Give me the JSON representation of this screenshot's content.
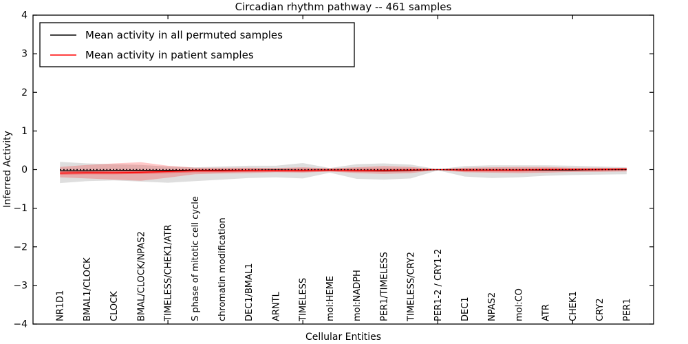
{
  "figure": {
    "title": "Circadian rhythm pathway -- 461 samples",
    "xlabel": "Cellular Entities",
    "ylabel": "Inferred Activity"
  },
  "legend": {
    "position": "upper left",
    "items": [
      {
        "label": "Mean activity in all permuted samples",
        "color": "#000000"
      },
      {
        "label": "Mean activity in patient samples",
        "color": "#ff0000"
      }
    ]
  },
  "chart_data": {
    "type": "line",
    "title": "Circadian rhythm pathway -- 461 samples",
    "xlabel": "Cellular Entities",
    "ylabel": "Inferred Activity",
    "ylim": [
      -4,
      4
    ],
    "xlim": [
      0,
      23
    ],
    "grid": false,
    "legend_position": "upper left",
    "ytick_labels": [
      "4",
      "3",
      "2",
      "1",
      "0",
      "−1",
      "−2",
      "−3",
      "−4"
    ],
    "ytick_values": [
      4,
      3,
      2,
      1,
      0,
      -1,
      -2,
      -3,
      -4
    ],
    "x_major_ticks": [
      5,
      10,
      15,
      20
    ],
    "categories": [
      "NR1D1",
      "BMAL1/CLOCK",
      "CLOCK",
      "BMAL/CLOCK/NPAS2",
      "TIMELESS/CHEK1/ATR",
      "S phase of mitotic cell cycle",
      "chromatin modification",
      "DEC1/BMAL1",
      "ARNTL",
      "TIMELESS",
      "mol:HEME",
      "mol:NADPH",
      "PER1/TIMELESS",
      "TIMELESS/CRY2",
      "PER1-2 / CRY1-2",
      "DEC1",
      "NPAS2",
      "mol:CO",
      "ATR",
      "CHEK1",
      "CRY2",
      "PER1"
    ],
    "bands": [
      {
        "name": "permuted-samples-range",
        "color": "#999999",
        "opacity": 0.32,
        "upper": [
          0.2,
          0.16,
          0.14,
          0.12,
          0.08,
          0.06,
          0.08,
          0.1,
          0.1,
          0.17,
          0.04,
          0.14,
          0.16,
          0.13,
          0.01,
          0.09,
          0.11,
          0.11,
          0.11,
          0.1,
          0.08,
          0.06
        ],
        "lower": [
          -0.35,
          -0.3,
          -0.28,
          -0.31,
          -0.34,
          -0.3,
          -0.26,
          -0.22,
          -0.2,
          -0.23,
          -0.08,
          -0.24,
          -0.26,
          -0.23,
          -0.02,
          -0.18,
          -0.22,
          -0.2,
          -0.16,
          -0.14,
          -0.13,
          -0.12
        ]
      },
      {
        "name": "patient-samples-range",
        "color": "#ff0000",
        "opacity": 0.22,
        "upper": [
          0.07,
          0.12,
          0.16,
          0.19,
          0.1,
          0.05,
          0.05,
          0.05,
          0.04,
          0.06,
          0.03,
          0.06,
          0.09,
          0.07,
          0.01,
          0.05,
          0.06,
          0.07,
          0.07,
          0.05,
          0.05,
          0.04
        ],
        "lower": [
          -0.2,
          -0.23,
          -0.26,
          -0.29,
          -0.21,
          -0.12,
          -0.1,
          -0.09,
          -0.07,
          -0.08,
          -0.05,
          -0.09,
          -0.11,
          -0.09,
          -0.01,
          -0.07,
          -0.08,
          -0.09,
          -0.08,
          -0.06,
          -0.06,
          -0.05
        ]
      },
      {
        "name": "patient-samples-core",
        "color": "#ff0000",
        "opacity": 0.38,
        "upper": [
          -0.05,
          -0.04,
          -0.04,
          -0.03,
          -0.01,
          0.01,
          0.01,
          0.02,
          0.02,
          0.02,
          0.02,
          0.02,
          0.02,
          0.02,
          0.01,
          0.02,
          0.02,
          0.02,
          0.03,
          0.03,
          0.03,
          0.04
        ],
        "lower": [
          -0.13,
          -0.12,
          -0.12,
          -0.11,
          -0.09,
          -0.07,
          -0.07,
          -0.06,
          -0.06,
          -0.06,
          -0.05,
          -0.06,
          -0.06,
          -0.05,
          -0.01,
          -0.05,
          -0.05,
          -0.05,
          -0.04,
          -0.04,
          -0.03,
          -0.02
        ]
      }
    ],
    "series": [
      {
        "name": "Mean activity in all permuted samples",
        "color": "#000000",
        "style": "solid",
        "values": [
          -0.03,
          -0.03,
          -0.02,
          -0.02,
          -0.02,
          -0.02,
          -0.02,
          -0.02,
          -0.01,
          -0.02,
          -0.01,
          -0.02,
          -0.03,
          -0.02,
          0.0,
          -0.01,
          -0.01,
          -0.01,
          -0.01,
          -0.01,
          0.0,
          0.0
        ]
      },
      {
        "name": "Mean activity in patient samples",
        "color": "#ff0000",
        "style": "solid",
        "values": [
          -0.09,
          -0.08,
          -0.08,
          -0.07,
          -0.05,
          -0.03,
          -0.03,
          -0.02,
          -0.02,
          -0.02,
          -0.01,
          -0.02,
          -0.02,
          -0.01,
          0.0,
          -0.01,
          -0.01,
          -0.01,
          0.0,
          0.0,
          0.0,
          0.01
        ]
      },
      {
        "name": "zero-reference",
        "color": "#000000",
        "style": "dotted",
        "values": [
          0,
          0,
          0,
          0,
          0,
          0,
          0,
          0,
          0,
          0,
          0,
          0,
          0,
          0,
          0,
          0,
          0,
          0,
          0,
          0,
          0,
          0
        ]
      }
    ]
  }
}
